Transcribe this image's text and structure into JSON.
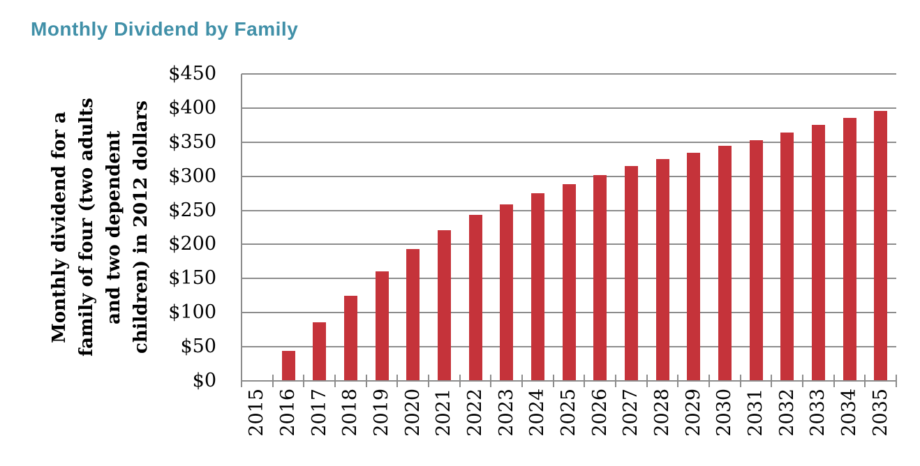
{
  "title": "Monthly Dividend by Family",
  "colors": {
    "title": "#4190A8",
    "bar": "#C5333A",
    "grid": "#8C8C8C",
    "axis": "#8C8C8C",
    "text": "#000000"
  },
  "chart_data": {
    "type": "bar",
    "title": "Monthly Dividend by Family",
    "xlabel": "",
    "ylabel": "Monthly dividend for a family of four (two adults and two dependent children) in 2012 dollars",
    "ylabel_lines": [
      "Monthly dividend for a",
      "family of four (two adults",
      "and two dependent",
      "children) in 2012 dollars"
    ],
    "categories": [
      "2015",
      "2016",
      "2017",
      "2018",
      "2019",
      "2020",
      "2021",
      "2022",
      "2023",
      "2024",
      "2025",
      "2026",
      "2027",
      "2028",
      "2029",
      "2030",
      "2031",
      "2032",
      "2033",
      "2034",
      "2035"
    ],
    "values": [
      0,
      44,
      86,
      125,
      161,
      193,
      221,
      243,
      259,
      275,
      288,
      302,
      315,
      325,
      334,
      345,
      353,
      364,
      375,
      386,
      396
    ],
    "ylim": [
      0,
      450
    ],
    "y_ticks": [
      0,
      50,
      100,
      150,
      200,
      250,
      300,
      350,
      400,
      450
    ],
    "y_tick_labels": [
      "$0",
      "$50",
      "$100",
      "$150",
      "$200",
      "$250",
      "$300",
      "$350",
      "$400",
      "$450"
    ],
    "x_tick_label_rotation": -90,
    "grid": true,
    "legend": false
  }
}
